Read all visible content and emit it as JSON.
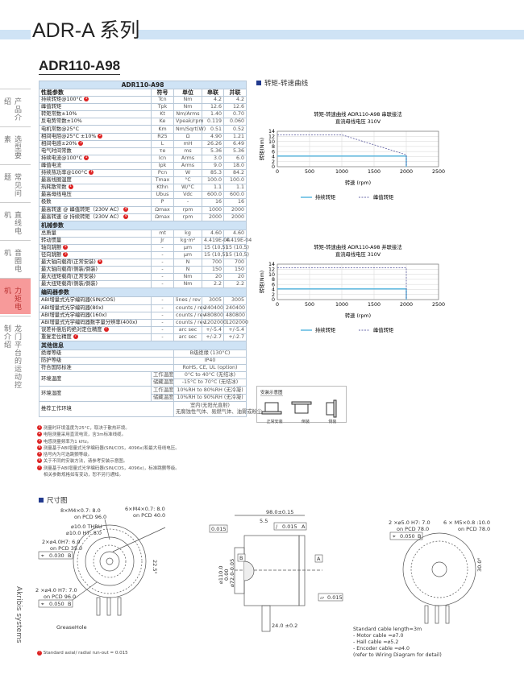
{
  "page": {
    "series_title": "ADR-A 系列",
    "model_title": "ADR110-A98"
  },
  "sidebar": {
    "items": [
      {
        "label": "产品介绍"
      },
      {
        "label": "选型要素"
      },
      {
        "label": "常见问题"
      },
      {
        "label": "直线电机"
      },
      {
        "label": "音圈电机"
      },
      {
        "label": "力矩电机",
        "active": true
      },
      {
        "label": "龙门平台的运动控制介绍"
      }
    ],
    "brand": "Akribis systems",
    "active_color": "#f79a9a"
  },
  "table": {
    "title": "ADR110-A98",
    "columns": [
      "性能参数",
      "符号",
      "单位",
      "串联",
      "并联"
    ],
    "performance": [
      [
        "持续转矩@100°C",
        "1",
        "Tcn",
        "Nm",
        "4.2",
        "4.2"
      ],
      [
        "峰值转矩",
        "",
        "Tpk",
        "Nm",
        "12.6",
        "12.6"
      ],
      [
        "转矩常数±10%",
        "",
        "Kt",
        "Nm/Arms",
        "1.40",
        "0.70"
      ],
      [
        "反电势常数±10%",
        "",
        "Ke",
        "Vpeak/rpm",
        "0.119",
        "0.060"
      ],
      [
        "电机常数@25°C",
        "",
        "Km",
        "Nm/Sqrt(W)",
        "0.51",
        "0.52"
      ],
      [
        "相间电阻@25°C ±10%",
        "2",
        "R25",
        "Ω",
        "4.90",
        "1.21"
      ],
      [
        "相间电感±20%",
        "3",
        "L",
        "mH",
        "26.26",
        "6.49"
      ],
      [
        "电气时间常数",
        "",
        "τe",
        "ms",
        "5.36",
        "5.36"
      ],
      [
        "持续电流@100°C",
        "1",
        "Icn",
        "Arms",
        "3.0",
        "6.0"
      ],
      [
        "峰值电流",
        "",
        "Ipk",
        "Arms",
        "9.0",
        "18.0"
      ],
      [
        "持续热功率@100°C",
        "1",
        "Pcn",
        "W",
        "85.3",
        "84.2"
      ],
      [
        "最高线圈温度",
        "",
        "Tmax",
        "°C",
        "100.0",
        "100.0"
      ],
      [
        "热耗散常数",
        "1",
        "Kthn",
        "W/°C",
        "1.1",
        "1.1"
      ],
      [
        "最高母线电压",
        "",
        "Ubus",
        "Vdc",
        "600.0",
        "600.0"
      ],
      [
        "极数",
        "",
        "P",
        "-",
        "16",
        "16"
      ],
      [
        "最高转速 @ 峰值转矩（230V AC）",
        "4",
        "Ωmax",
        "rpm",
        "1000",
        "2000"
      ],
      [
        "最高转速 @ 持续转矩（230V AC）",
        "4",
        "Ωmax",
        "rpm",
        "2000",
        "2000"
      ]
    ],
    "mechanical_title": "机械参数",
    "mechanical": [
      [
        "总质量",
        "",
        "mt",
        "kg",
        "4.60",
        "4.60"
      ],
      [
        "转动惯量",
        "",
        "Jr",
        "kg·m²",
        "4.419E-04",
        "4.419E-04"
      ],
      [
        "轴向跳颤",
        "5",
        "-",
        "μm",
        "15 (10,5)",
        "15 (10,5)"
      ],
      [
        "径向跳颤",
        "5",
        "-",
        "μm",
        "15 (10,5)",
        "15 (10,5)"
      ],
      [
        "最大轴向载荷(正常安装)",
        "6",
        "-",
        "N",
        "700",
        "700"
      ],
      [
        "最大轴向载荷(侧装/倒装)",
        "",
        "-",
        "N",
        "150",
        "150"
      ],
      [
        "最大扭矩载荷(正常安装)",
        "",
        "-",
        "Nm",
        "20",
        "20"
      ],
      [
        "最大扭矩载荷(侧装/倒装)",
        "",
        "-",
        "Nm",
        "2.2",
        "2.2"
      ]
    ],
    "encoder_title": "编码器参数",
    "encoder": [
      [
        "ABI增量式光学编码器(SIN/COS)",
        "",
        "-",
        "lines / rev",
        "3005",
        "3005"
      ],
      [
        "ABI增量式光学编码器(80x)",
        "",
        "-",
        "counts / rev",
        "240400",
        "240400"
      ],
      [
        "ABI增量式光学编码器(160x)",
        "",
        "-",
        "counts / rev",
        "480800",
        "480800"
      ],
      [
        "ABI增量式光学编码器数字量分辨率(400x)",
        "",
        "-",
        "counts / rev",
        "1202000",
        "1202000"
      ],
      [
        "误差补偿后的绝对定位精度",
        "7",
        "-",
        "arc sec",
        "+/-5.4",
        "+/-5.4"
      ],
      [
        "重复定位精度",
        "7",
        "-",
        "arc sec",
        "+/-2.7",
        "+/-2.7"
      ]
    ],
    "other_title": "其他信息",
    "other": {
      "insulation": [
        "绝缘等级",
        "B级绝缘 (130°C)"
      ],
      "protection": [
        "防护等级",
        "IP40"
      ],
      "standards": [
        "符合国际标准",
        "RoHS, CE, UL (option)"
      ],
      "temp": {
        "label": "环境温度",
        "operating": [
          "工作温度",
          "0°C to 40°C (无结冰)"
        ],
        "storage": [
          "储藏温度",
          "-15°C to 70°C (无结冰)"
        ]
      },
      "humidity": {
        "label": "环境湿度",
        "operating": [
          "工作温度",
          "10%RH to 80%RH (无冷凝)"
        ],
        "storage": [
          "储藏温度",
          "10%RH to 90%RH (无冷凝)"
        ]
      },
      "environment": {
        "label": "推荐工作环境",
        "line1": "室内(无阳光直射)",
        "line2": "无腐蚀性气体、易燃气体、油雾或粉尘"
      }
    }
  },
  "notes": [
    "测量时环境温度为25°C，取决于散热环境。",
    "电阻测量采用直流电流，含3m标准线缆。",
    "电感测量频率为1 kHz。",
    "测量基于ABI增量式光学编码器(SIN/COS，4096x)和最大母线电压。",
    "括号内为可选跳颤等级。",
    "关于不同的安装方法，请参考安装示意图。",
    "测量基于ABI增量式光学编码器(SIN/COS，4096x)，标准跳颤等级。"
  ],
  "notes_tail": "相关参数规格如有变动，恕不另行通知。",
  "curve_section": "转矩-转速曲线",
  "chart_data": [
    {
      "type": "line",
      "title": "转矩-转速曲线 ADR110-A98 串联接法",
      "subtitle": "直流母线电压 310V",
      "xlabel": "转速 (rpm)",
      "ylabel": "转矩(Nm)",
      "xlim": [
        0,
        2500
      ],
      "ylim": [
        0,
        14
      ],
      "xticks": [
        0,
        500,
        1000,
        1500,
        2000,
        2500
      ],
      "yticks": [
        0,
        2,
        4,
        6,
        8,
        10,
        12,
        14
      ],
      "grid": true,
      "legend": "bottom",
      "series": [
        {
          "name": "持续转矩",
          "color": "#5bb8e0",
          "style": "solid",
          "x": [
            0,
            2000,
            2000
          ],
          "y": [
            4.2,
            4.2,
            0
          ]
        },
        {
          "name": "峰值转矩",
          "color": "#6a6aa8",
          "style": "dashed",
          "x": [
            0,
            1000,
            2000,
            2000
          ],
          "y": [
            12.6,
            12.6,
            4.7,
            0
          ]
        }
      ]
    },
    {
      "type": "line",
      "title": "转矩-转速曲线 ADR110-A98 并联接法",
      "subtitle": "直流母线电压 310V",
      "xlabel": "转速 (rpm)",
      "ylabel": "转矩(Nm)",
      "xlim": [
        0,
        2500
      ],
      "ylim": [
        0,
        14
      ],
      "xticks": [
        0,
        500,
        1000,
        1500,
        2000,
        2500
      ],
      "yticks": [
        0,
        2,
        4,
        6,
        8,
        10,
        12,
        14
      ],
      "grid": true,
      "legend": "bottom",
      "series": [
        {
          "name": "持续转矩",
          "color": "#5bb8e0",
          "style": "solid",
          "x": [
            0,
            2000,
            2000
          ],
          "y": [
            4.2,
            4.2,
            0
          ]
        },
        {
          "name": "峰值转矩",
          "color": "#6a6aa8",
          "style": "dashed",
          "x": [
            0,
            2000,
            2000
          ],
          "y": [
            12.6,
            12.6,
            0
          ]
        }
      ]
    }
  ],
  "install": {
    "title": "安装示意图",
    "items": [
      "正常安装",
      "倒装",
      "侧装"
    ]
  },
  "dims": {
    "title": "尺寸图",
    "front": {
      "l1": "8×M4×0.7: 8.0",
      "l1b": "on PCD 96.0",
      "l2": "6×M4×0.7: 8.0",
      "l2b": "on PCD 40.0",
      "l3": "⌀10.0 THRU",
      "l4": "⌀10.0 H7: 8.0",
      "l5": "2×⌀4.0H7: 6.0",
      "l5b": "on PCD 35.0",
      "tol1": "0.030",
      "ref1": "B",
      "angle": "22.5°",
      "l6": "2 ×⌀4.0 H7: 7.0",
      "l6b": "on PCD 96.0",
      "tol2": "0.050",
      "ref2": "B",
      "grease": "GreaseHole"
    },
    "side": {
      "len": "98.0±0.15",
      "flange": "5.5",
      "tol_a": "0.015",
      "tol_b": "0.015",
      "ref_a": "A",
      "dia1": "⌀110.0",
      "dia2": "0.00",
      "dia3": "⌀72.0-0.05",
      "ref_b": "B",
      "ref_a2": "A",
      "flat": "0.015",
      "cable": "24.0 ±0.2"
    },
    "rear": {
      "l1": "2 ×⌀5.0 H7: 7.0",
      "l1b": "on PCD 78.0",
      "tol": "0.050",
      "ref": "B",
      "l2": "6 × M5×0.8 :10.0",
      "l2b": "on PCD 78.0",
      "angle": "30.0°",
      "cable": [
        "Standard cable length=3m",
        "- Motor cable =⌀7.0",
        "- Hall cable =⌀5.2",
        "- Encoder cable =⌀4.0",
        "(refer to Wiring Diagram for detail)"
      ]
    },
    "footnote": "Standard axial/ radial run-out = 0.015"
  }
}
